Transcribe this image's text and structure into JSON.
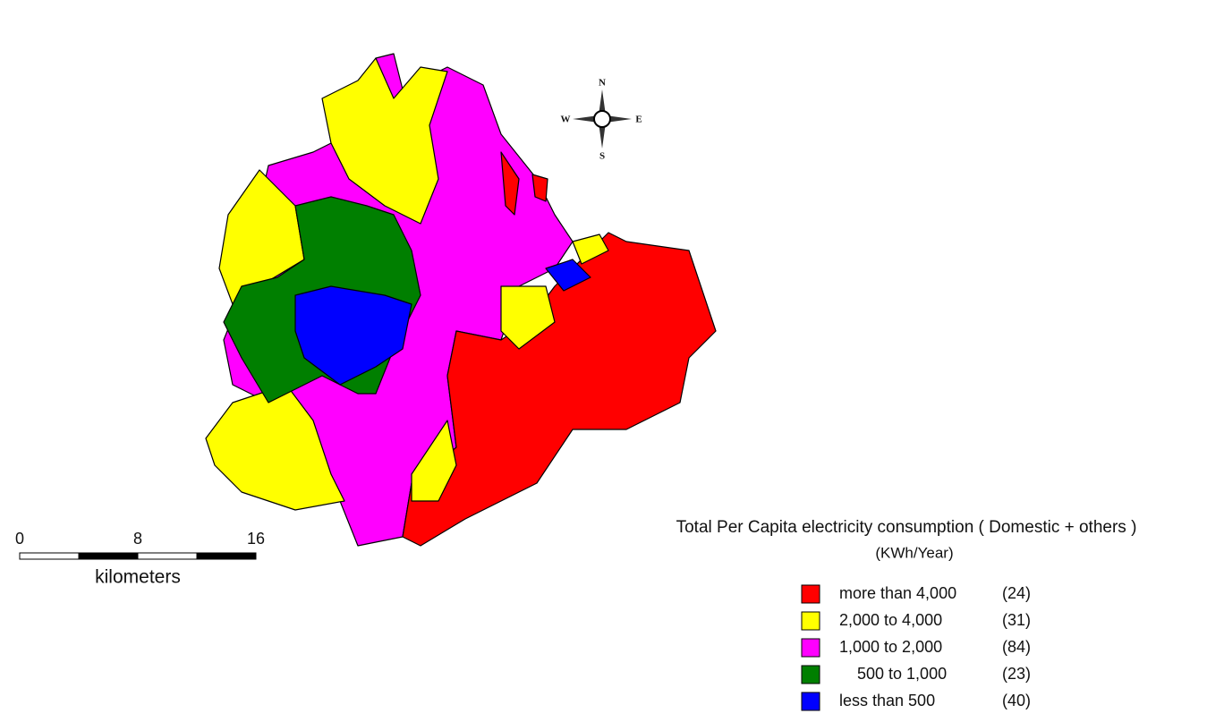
{
  "legend": {
    "title": "Total Per Capita electricity consumption ( Domestic + others )",
    "subtitle": "(KWh/Year)",
    "items": [
      {
        "label": "more than 4,000",
        "count": "(24)",
        "color": "#ff0000"
      },
      {
        "label": "2,000 to 4,000",
        "count": "(31)",
        "color": "#ffff00"
      },
      {
        "label": "1,000 to 2,000",
        "count": "(84)",
        "color": "#ff00ff"
      },
      {
        "label": "500 to 1,000",
        "count": "(23)",
        "color": "#007f00"
      },
      {
        "label": "less than 500",
        "count": "(40)",
        "color": "#0000ff"
      }
    ]
  },
  "scale_bar": {
    "labels": [
      "0",
      "8",
      "16"
    ],
    "unit": "kilometers"
  },
  "compass": {
    "north": "N",
    "south": "S",
    "east": "E",
    "west": "W"
  }
}
